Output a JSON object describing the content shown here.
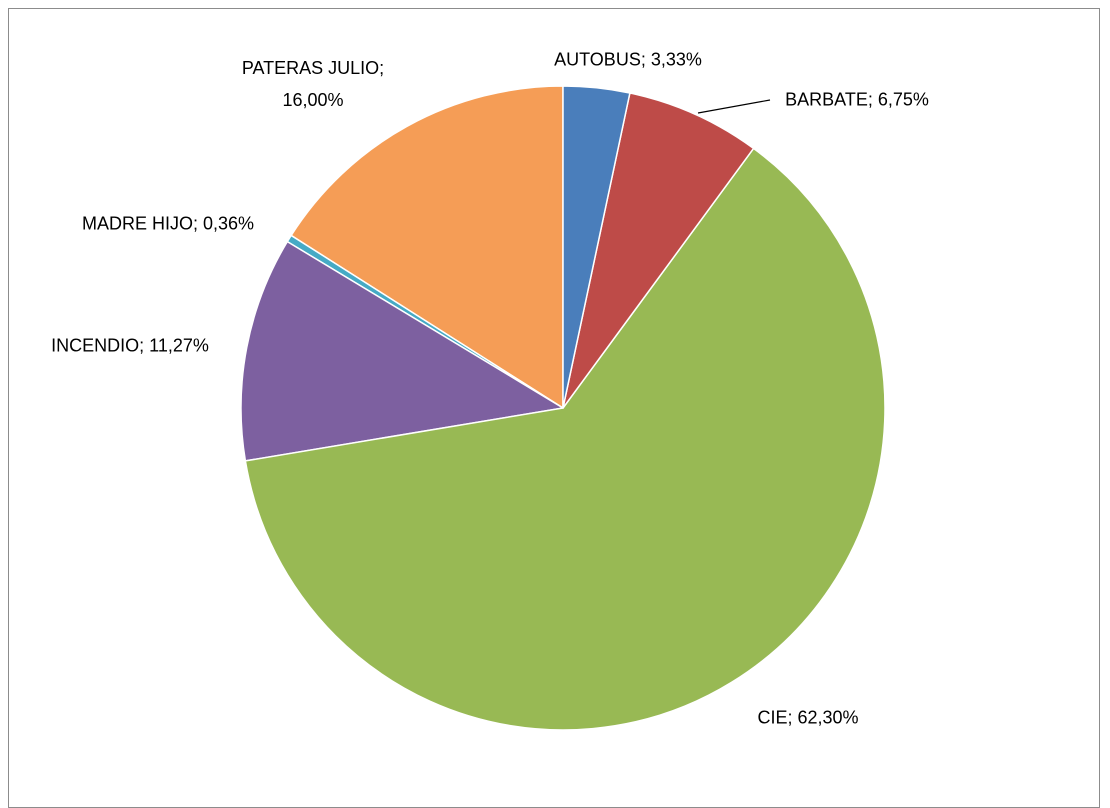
{
  "chart_data": {
    "type": "pie",
    "values": [
      3.33,
      6.75,
      62.3,
      11.27,
      0.36,
      16.0
    ],
    "value_labels": [
      "AUTOBUS; 3,33%",
      "BARBATE; 6,75%",
      "CIE; 62,30%",
      "INCENDIO; 11,27%",
      "MADRE HIJO; 0,36%",
      "PATERAS JULIO; 16,00%"
    ],
    "colors": [
      "#4a7ebb",
      "#be4b48",
      "#98b954",
      "#7d60a0",
      "#46aac5",
      "#f59d56"
    ],
    "start_angle": 0,
    "direction": "clockwise"
  }
}
